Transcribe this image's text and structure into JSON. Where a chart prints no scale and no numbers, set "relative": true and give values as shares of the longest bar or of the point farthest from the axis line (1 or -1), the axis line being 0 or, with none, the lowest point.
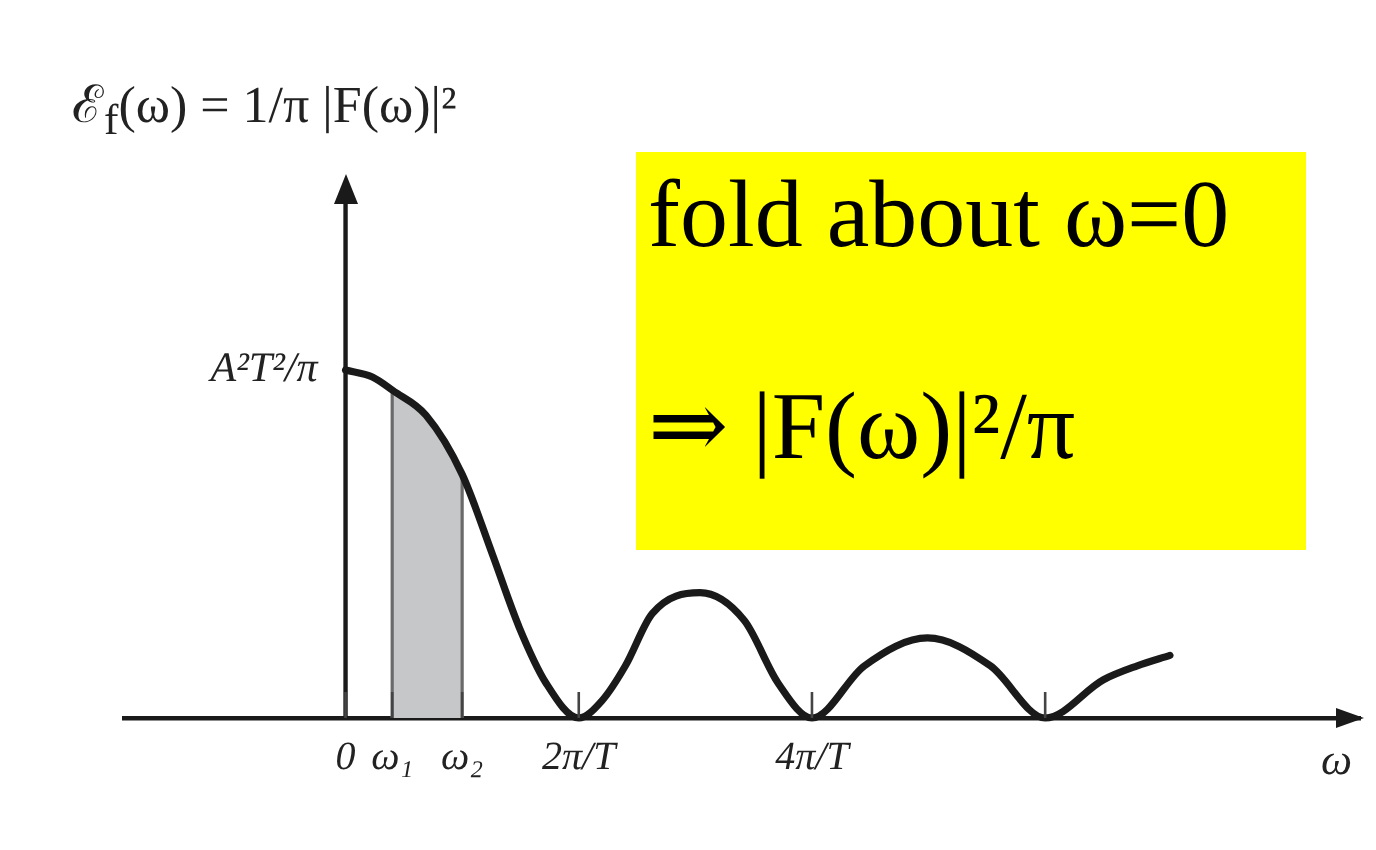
{
  "chart_data": {
    "type": "line",
    "ylabel": "ℰ$_{f}$(ω) = 1/π |F(ω)|²",
    "xlabel": "ω",
    "relative": true,
    "x": [
      0,
      0.23,
      0.41,
      0.69,
      1.0,
      1.26,
      1.49,
      1.72,
      2,
      2.2,
      2.4,
      2.63,
      3.04,
      3.42,
      3.71,
      4,
      4.45,
      4.99,
      5.53,
      6,
      6.5,
      6.79,
      7.07
    ],
    "values": [
      1,
      0.98,
      0.94,
      0.87,
      0.7,
      0.47,
      0.26,
      0.1,
      0,
      0.05,
      0.15,
      0.3,
      0.36,
      0.28,
      0.1,
      0,
      0.15,
      0.23,
      0.15,
      0,
      0.11,
      0.15,
      0.18
    ],
    "color": "#1a1a1a",
    "marker": "none",
    "tick_labels": "x",
    "xlim": [
      -1.9,
      8.7
    ],
    "xticks": [
      0,
      {
        "value": 0.4,
        "label": "ω₁"
      },
      {
        "value": 1,
        "label": "ω₂"
      },
      {
        "value": 2,
        "label": "2π/T"
      },
      {
        "value": 4,
        "label": "4π/T"
      },
      {
        "value": 6,
        "label": null
      }
    ],
    "bands": [
      {
        "axis": "x",
        "from": 0.4,
        "to": 1,
        "color": "#c6c7c9"
      }
    ],
    "annotations": [
      "fold about ω=0",
      "⇒ |F(ω)|²/π",
      {
        "text": "A²T²/π",
        "x": 0,
        "y": 1
      }
    ]
  }
}
